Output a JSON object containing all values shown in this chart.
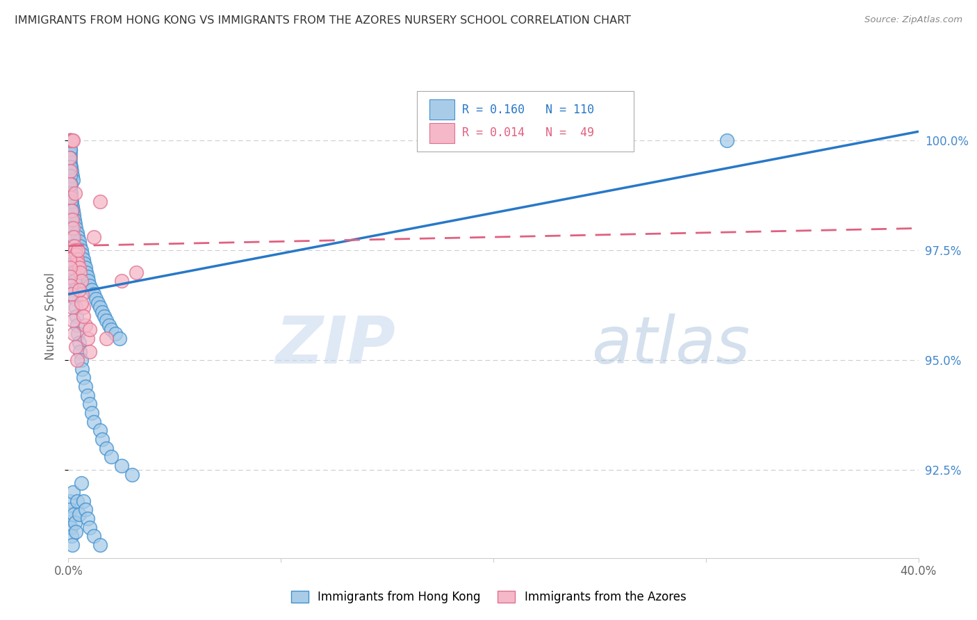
{
  "title": "IMMIGRANTS FROM HONG KONG VS IMMIGRANTS FROM THE AZORES NURSERY SCHOOL CORRELATION CHART",
  "source": "Source: ZipAtlas.com",
  "ylabel": "Nursery School",
  "ytick_labels": [
    "92.5%",
    "95.0%",
    "97.5%",
    "100.0%"
  ],
  "ytick_values": [
    92.5,
    95.0,
    97.5,
    100.0
  ],
  "xlim": [
    0.0,
    40.0
  ],
  "ylim": [
    90.5,
    101.5
  ],
  "legend_label_blue": "Immigrants from Hong Kong",
  "legend_label_pink": "Immigrants from the Azores",
  "blue_color": "#a8cce8",
  "pink_color": "#f5b8c8",
  "blue_edge_color": "#4090d0",
  "pink_edge_color": "#e07090",
  "blue_line_color": "#2878c8",
  "pink_line_color": "#e06080",
  "watermark_zip": "ZIP",
  "watermark_atlas": "atlas",
  "grid_color": "#cccccc",
  "background_color": "#ffffff",
  "title_color": "#333333",
  "axis_color": "#666666",
  "right_axis_color": "#4488cc",
  "blue_trend_x": [
    0.0,
    40.0
  ],
  "blue_trend_y": [
    96.5,
    100.2
  ],
  "pink_trend_x": [
    0.0,
    40.0
  ],
  "pink_trend_y": [
    97.6,
    98.0
  ],
  "blue_scatter_x": [
    0.05,
    0.08,
    0.1,
    0.12,
    0.15,
    0.05,
    0.08,
    0.1,
    0.06,
    0.09,
    0.12,
    0.15,
    0.18,
    0.2,
    0.05,
    0.07,
    0.1,
    0.13,
    0.16,
    0.19,
    0.22,
    0.25,
    0.28,
    0.3,
    0.35,
    0.4,
    0.45,
    0.5,
    0.55,
    0.6,
    0.65,
    0.7,
    0.75,
    0.8,
    0.85,
    0.9,
    0.95,
    1.0,
    1.1,
    1.2,
    1.3,
    1.4,
    1.5,
    1.6,
    1.7,
    1.8,
    1.9,
    2.0,
    2.2,
    2.4,
    0.05,
    0.06,
    0.07,
    0.08,
    0.09,
    0.1,
    0.11,
    0.12,
    0.13,
    0.14,
    0.15,
    0.16,
    0.17,
    0.18,
    0.2,
    0.22,
    0.25,
    0.28,
    0.3,
    0.32,
    0.35,
    0.38,
    0.4,
    0.45,
    0.5,
    0.55,
    0.6,
    0.65,
    0.7,
    0.8,
    0.9,
    1.0,
    1.1,
    1.2,
    1.5,
    1.6,
    1.8,
    2.0,
    2.5,
    3.0,
    0.05,
    0.08,
    0.1,
    0.12,
    0.15,
    0.18,
    0.2,
    0.25,
    0.3,
    0.35,
    0.4,
    0.5,
    0.6,
    0.7,
    0.8,
    0.9,
    1.0,
    1.2,
    1.5,
    31.0
  ],
  "blue_scatter_y": [
    100.0,
    100.0,
    100.0,
    100.0,
    100.0,
    99.9,
    99.8,
    99.7,
    99.6,
    99.5,
    99.4,
    99.3,
    99.2,
    99.1,
    99.0,
    98.9,
    98.8,
    98.7,
    98.6,
    98.5,
    98.4,
    98.3,
    98.2,
    98.1,
    98.0,
    97.9,
    97.8,
    97.7,
    97.6,
    97.5,
    97.4,
    97.3,
    97.2,
    97.1,
    97.0,
    96.9,
    96.8,
    96.7,
    96.6,
    96.5,
    96.4,
    96.3,
    96.2,
    96.1,
    96.0,
    95.9,
    95.8,
    95.7,
    95.6,
    95.5,
    100.0,
    100.0,
    99.8,
    99.6,
    99.4,
    99.2,
    99.0,
    98.8,
    98.6,
    98.4,
    98.2,
    98.0,
    97.8,
    97.6,
    97.4,
    97.2,
    97.0,
    96.8,
    96.6,
    96.4,
    96.2,
    96.0,
    95.8,
    95.6,
    95.4,
    95.2,
    95.0,
    94.8,
    94.6,
    94.4,
    94.2,
    94.0,
    93.8,
    93.6,
    93.4,
    93.2,
    93.0,
    92.8,
    92.6,
    92.4,
    91.8,
    91.6,
    91.4,
    91.2,
    91.0,
    90.8,
    92.0,
    91.5,
    91.3,
    91.1,
    91.8,
    91.5,
    92.2,
    91.8,
    91.6,
    91.4,
    91.2,
    91.0,
    90.8,
    100.0
  ],
  "pink_scatter_x": [
    0.05,
    0.08,
    0.1,
    0.12,
    0.15,
    0.18,
    0.2,
    0.05,
    0.08,
    0.1,
    0.12,
    0.15,
    0.18,
    0.22,
    0.25,
    0.28,
    0.3,
    0.35,
    0.4,
    0.45,
    0.5,
    0.55,
    0.6,
    0.65,
    0.7,
    0.8,
    0.9,
    1.0,
    1.2,
    1.5,
    0.05,
    0.07,
    0.1,
    0.12,
    0.15,
    0.18,
    0.2,
    0.25,
    0.3,
    0.35,
    0.4,
    0.45,
    0.5,
    0.6,
    0.7,
    1.0,
    1.8,
    2.5,
    3.2
  ],
  "pink_scatter_y": [
    100.0,
    100.0,
    100.0,
    100.0,
    100.0,
    100.0,
    100.0,
    99.6,
    99.3,
    99.0,
    98.7,
    98.4,
    98.2,
    98.0,
    97.8,
    97.6,
    97.5,
    97.4,
    97.3,
    97.2,
    97.1,
    97.0,
    96.8,
    96.5,
    96.2,
    95.8,
    95.5,
    95.2,
    97.8,
    98.6,
    97.3,
    97.1,
    96.9,
    96.7,
    96.5,
    96.2,
    95.9,
    95.6,
    98.8,
    95.3,
    95.0,
    97.5,
    96.6,
    96.3,
    96.0,
    95.7,
    95.5,
    96.8,
    97.0
  ]
}
